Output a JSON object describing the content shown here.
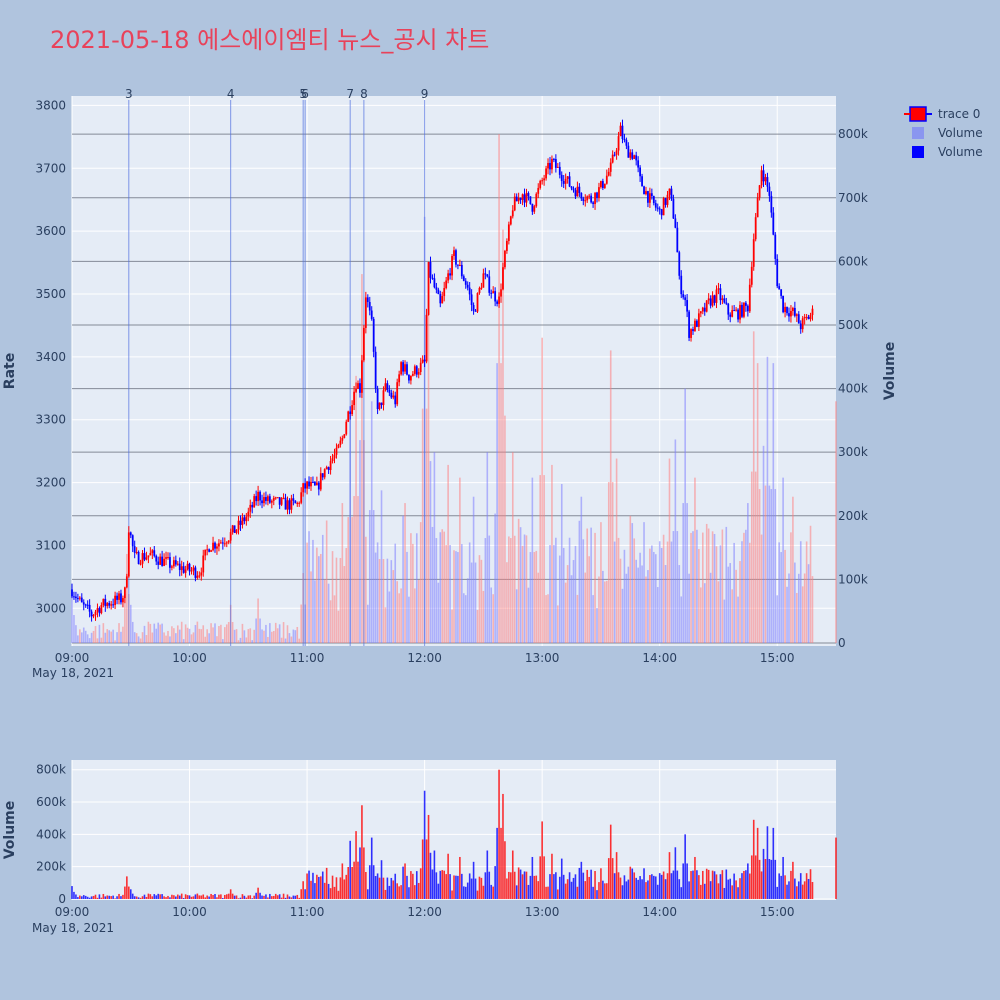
{
  "title": "2021-05-18 에스에이엠티 뉴스_공시 차트",
  "colors": {
    "background": "#b0c4de",
    "plot_bg": "#e5ecf6",
    "up": "#ff0000",
    "down": "#0000ff",
    "title": "#e8425a",
    "gridline_h": "#6b7280",
    "news_line": "#4f6fe0"
  },
  "legend": {
    "items": [
      {
        "label": "trace 0",
        "type": "candle"
      },
      {
        "label": "Volume",
        "type": "light-square"
      },
      {
        "label": "Volume",
        "type": "solid-square"
      }
    ]
  },
  "chart_data": [
    {
      "type": "candlestick",
      "name": "trace 0",
      "ylabel": "Rate",
      "y2label": "Volume",
      "ylim": [
        2940,
        3815
      ],
      "y2lim": [
        0,
        860000
      ],
      "xlim": [
        "09:00",
        "15:30"
      ],
      "x_ticks": [
        "09:00",
        "10:00",
        "11:00",
        "12:00",
        "13:00",
        "14:00",
        "15:00"
      ],
      "x_date_label": "May 18, 2021",
      "y_ticks": [
        3000,
        3100,
        3200,
        3300,
        3400,
        3500,
        3600,
        3700,
        3800
      ],
      "y2_ticks": [
        "0",
        "100k",
        "200k",
        "300k",
        "400k",
        "500k",
        "600k",
        "700k",
        "800k"
      ],
      "y2_tick_values": [
        0,
        100000,
        200000,
        300000,
        400000,
        500000,
        600000,
        700000,
        800000
      ],
      "news_markers": [
        {
          "label": "3",
          "time": "09:29"
        },
        {
          "label": "4",
          "time": "10:21"
        },
        {
          "label": "5",
          "time": "10:58"
        },
        {
          "label": "6",
          "time": "10:59"
        },
        {
          "label": "7",
          "time": "11:22"
        },
        {
          "label": "8",
          "time": "11:29"
        },
        {
          "label": "9",
          "time": "12:00"
        }
      ],
      "price_path": [
        [
          "09:00",
          3030
        ],
        [
          "09:05",
          3005
        ],
        [
          "09:10",
          2990
        ],
        [
          "09:15",
          3005
        ],
        [
          "09:20",
          3010
        ],
        [
          "09:25",
          3015
        ],
        [
          "09:27",
          3025
        ],
        [
          "09:28",
          3060
        ],
        [
          "09:29",
          3130
        ],
        [
          "09:32",
          3080
        ],
        [
          "09:40",
          3085
        ],
        [
          "09:50",
          3070
        ],
        [
          "10:00",
          3060
        ],
        [
          "10:05",
          3058
        ],
        [
          "10:10",
          3100
        ],
        [
          "10:15",
          3105
        ],
        [
          "10:20",
          3115
        ],
        [
          "10:25",
          3130
        ],
        [
          "10:30",
          3150
        ],
        [
          "10:35",
          3180
        ],
        [
          "10:40",
          3170
        ],
        [
          "10:50",
          3165
        ],
        [
          "10:55",
          3165
        ],
        [
          "10:58",
          3190
        ],
        [
          "11:00",
          3195
        ],
        [
          "11:05",
          3190
        ],
        [
          "11:08",
          3215
        ],
        [
          "11:12",
          3235
        ],
        [
          "11:15",
          3245
        ],
        [
          "11:18",
          3270
        ],
        [
          "11:20",
          3300
        ],
        [
          "11:22",
          3320
        ],
        [
          "11:25",
          3360
        ],
        [
          "11:27",
          3350
        ],
        [
          "11:30",
          3500
        ],
        [
          "11:33",
          3450
        ],
        [
          "11:36",
          3310
        ],
        [
          "11:40",
          3350
        ],
        [
          "11:45",
          3330
        ],
        [
          "11:48",
          3390
        ],
        [
          "11:52",
          3370
        ],
        [
          "11:56",
          3380
        ],
        [
          "12:00",
          3390
        ],
        [
          "12:02",
          3540
        ],
        [
          "12:05",
          3510
        ],
        [
          "12:08",
          3480
        ],
        [
          "12:12",
          3530
        ],
        [
          "12:15",
          3560
        ],
        [
          "12:18",
          3540
        ],
        [
          "12:22",
          3510
        ],
        [
          "12:25",
          3470
        ],
        [
          "12:30",
          3530
        ],
        [
          "12:35",
          3500
        ],
        [
          "12:38",
          3490
        ],
        [
          "12:40",
          3540
        ],
        [
          "12:45",
          3640
        ],
        [
          "12:50",
          3660
        ],
        [
          "12:55",
          3640
        ],
        [
          "13:00",
          3680
        ],
        [
          "13:05",
          3710
        ],
        [
          "13:10",
          3690
        ],
        [
          "13:15",
          3670
        ],
        [
          "13:20",
          3660
        ],
        [
          "13:25",
          3650
        ],
        [
          "13:30",
          3670
        ],
        [
          "13:35",
          3700
        ],
        [
          "13:40",
          3760
        ],
        [
          "13:43",
          3730
        ],
        [
          "13:47",
          3720
        ],
        [
          "13:50",
          3680
        ],
        [
          "13:55",
          3650
        ],
        [
          "14:00",
          3630
        ],
        [
          "14:05",
          3660
        ],
        [
          "14:08",
          3610
        ],
        [
          "14:10",
          3520
        ],
        [
          "14:13",
          3490
        ],
        [
          "14:15",
          3440
        ],
        [
          "14:18",
          3450
        ],
        [
          "14:22",
          3470
        ],
        [
          "14:26",
          3490
        ],
        [
          "14:30",
          3500
        ],
        [
          "14:35",
          3470
        ],
        [
          "14:40",
          3470
        ],
        [
          "14:45",
          3480
        ],
        [
          "14:48",
          3590
        ],
        [
          "14:52",
          3700
        ],
        [
          "14:56",
          3660
        ],
        [
          "15:00",
          3520
        ],
        [
          "15:03",
          3480
        ],
        [
          "15:08",
          3470
        ],
        [
          "15:12",
          3450
        ],
        [
          "15:15",
          3460
        ],
        [
          "15:18",
          3470
        ]
      ],
      "volume_spikes": [
        [
          "09:00",
          80000
        ],
        [
          "09:28",
          140000
        ],
        [
          "09:30",
          60000
        ],
        [
          "09:40",
          30000
        ],
        [
          "10:21",
          60000
        ],
        [
          "10:35",
          70000
        ],
        [
          "10:58",
          110000
        ],
        [
          "11:05",
          150000
        ],
        [
          "11:18",
          220000
        ],
        [
          "11:22",
          360000
        ],
        [
          "11:25",
          420000
        ],
        [
          "11:28",
          580000
        ],
        [
          "11:33",
          380000
        ],
        [
          "11:38",
          240000
        ],
        [
          "11:50",
          220000
        ],
        [
          "11:58",
          180000
        ],
        [
          "12:00",
          670000
        ],
        [
          "12:02",
          520000
        ],
        [
          "12:05",
          300000
        ],
        [
          "12:12",
          280000
        ],
        [
          "12:18",
          260000
        ],
        [
          "12:25",
          230000
        ],
        [
          "12:32",
          300000
        ],
        [
          "12:37",
          370000
        ],
        [
          "12:38",
          800000
        ],
        [
          "12:40",
          650000
        ],
        [
          "12:45",
          300000
        ],
        [
          "12:55",
          260000
        ],
        [
          "13:00",
          480000
        ],
        [
          "13:05",
          280000
        ],
        [
          "13:10",
          250000
        ],
        [
          "13:20",
          230000
        ],
        [
          "13:30",
          190000
        ],
        [
          "13:35",
          460000
        ],
        [
          "13:38",
          290000
        ],
        [
          "13:45",
          200000
        ],
        [
          "13:52",
          190000
        ],
        [
          "14:00",
          160000
        ],
        [
          "14:05",
          290000
        ],
        [
          "14:08",
          320000
        ],
        [
          "14:13",
          400000
        ],
        [
          "14:18",
          260000
        ],
        [
          "14:25",
          180000
        ],
        [
          "14:35",
          120000
        ],
        [
          "14:42",
          160000
        ],
        [
          "14:45",
          220000
        ],
        [
          "14:48",
          490000
        ],
        [
          "14:50",
          440000
        ],
        [
          "14:53",
          310000
        ],
        [
          "14:55",
          450000
        ],
        [
          "14:58",
          440000
        ],
        [
          "15:03",
          260000
        ],
        [
          "15:08",
          230000
        ],
        [
          "15:12",
          160000
        ],
        [
          "15:15",
          130000
        ],
        [
          "15:30",
          380000
        ]
      ]
    },
    {
      "type": "bar",
      "name": "Volume",
      "ylabel": "Volume",
      "ylim": [
        0,
        860000
      ],
      "y_ticks": [
        "0",
        "200k",
        "400k",
        "600k",
        "800k"
      ],
      "y_tick_values": [
        0,
        200000,
        400000,
        600000,
        800000
      ],
      "x_ticks": [
        "09:00",
        "10:00",
        "11:00",
        "12:00",
        "13:00",
        "14:00",
        "15:00"
      ],
      "x_date_label": "May 18, 2021"
    }
  ]
}
